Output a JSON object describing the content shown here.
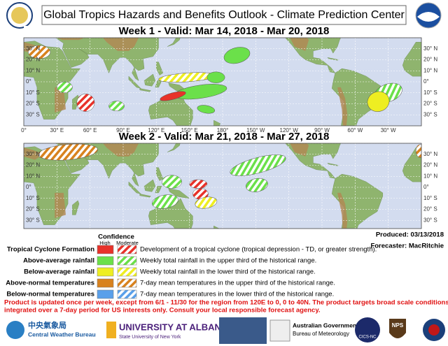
{
  "header": {
    "title": "Global Tropics Hazards and Benefits Outlook - Climate Prediction Center"
  },
  "maps": [
    {
      "title": "Week 1 - Valid: Mar 14, 2018 - Mar 20, 2018",
      "lat_labels": [
        "30° N",
        "20° N",
        "10° N",
        "0°",
        "10° S",
        "20° S",
        "30° S"
      ],
      "lon_labels": [
        "0°",
        "30° E",
        "60° E",
        "90° E",
        "120° E",
        "150° E",
        "180°",
        "150° W",
        "120° W",
        "90° W",
        "60° W",
        "30° W"
      ]
    },
    {
      "title": "Week 2 - Valid: Mar 21, 2018 - Mar 27, 2018",
      "lat_labels": [
        "30° N",
        "20° N",
        "10° N",
        "0°",
        "10° S",
        "20° S",
        "30° S"
      ]
    }
  ],
  "legend": {
    "title": "Confidence",
    "high": "High",
    "moderate": "Moderate",
    "rows": [
      {
        "label": "Tropical Cyclone Formation",
        "description": "Development of a tropical cyclone (tropical depression - TD, or greater strength)."
      },
      {
        "label": "Above-average rainfall",
        "description": "Weekly total rainfall in the upper third of the historical range."
      },
      {
        "label": "Below-average rainfall",
        "description": "Weekly total rainfall in the lower third of the historical range."
      },
      {
        "label": "Above-normal temperatures",
        "description": "7-day mean temperatures in the upper third of the historical range."
      },
      {
        "label": "Below-normal temperatures",
        "description": "7-day mean temperatures in the lower third of the historical range."
      }
    ]
  },
  "produced": "Produced: 03/13/2018",
  "forecaster": "Forecaster: MacRitchie",
  "footer": [
    "Product is updated once per week, except from 6/1 - 11/30 for the region from 120E to 0, 0 to 40N. The product targets broad scale conditions",
    "integrated over a 7-day period for US interests only.  Consult your local responsible forecast agency."
  ],
  "logos": {
    "cwb_chinese": "中央氣象局",
    "cwb": "Central Weather Bureau",
    "albany": "UNIVERSITY AT ALBANY",
    "suny": "State University of New York",
    "aus": "Australian Government",
    "bom": "Bureau of Meteorology",
    "cics": "CICS-NC",
    "nps": "NPS"
  }
}
